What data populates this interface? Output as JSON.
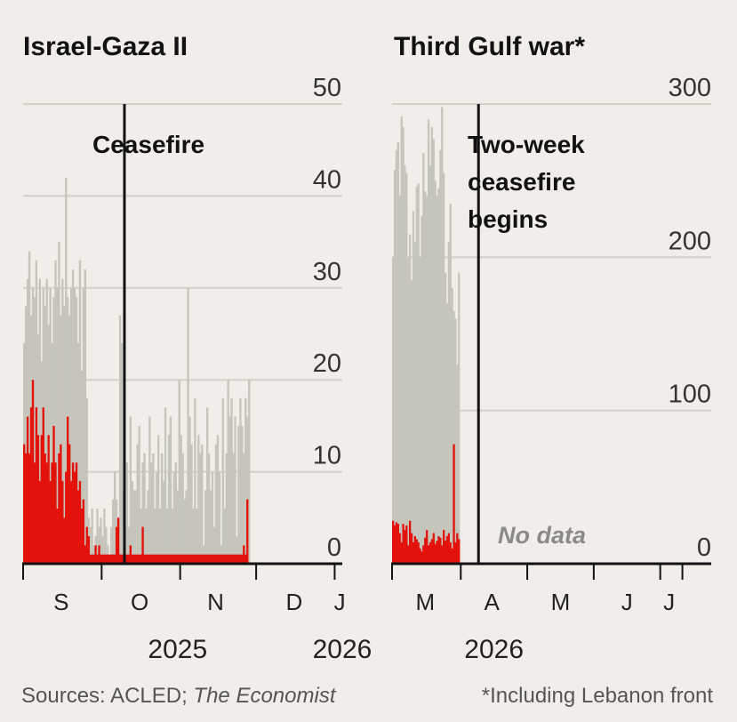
{
  "colors": {
    "background": "#f1eee9",
    "total_bar": "#c6c5bc",
    "highlight_bar": "#e3120b",
    "gridline": "#d3d0ca",
    "axis": "#121212"
  },
  "chart_data": [
    {
      "type": "bar",
      "title": "Israel-Gaza II",
      "ylim": [
        0,
        50
      ],
      "yticks": [
        0,
        10,
        20,
        30,
        40,
        50
      ],
      "ytick_labels": [
        "0",
        "10",
        "20",
        "30",
        "40",
        "50"
      ],
      "x_start": "2025-08-31",
      "x_end": "2026-01-04",
      "month_labels": [
        {
          "label": "S",
          "date": "2025-09-15"
        },
        {
          "label": "O",
          "date": "2025-10-16"
        },
        {
          "label": "N",
          "date": "2025-11-15"
        },
        {
          "label": "D",
          "date": "2025-12-16"
        },
        {
          "label": "J",
          "date": "2026-01-03"
        }
      ],
      "month_boundaries": [
        "2025-08-31",
        "2025-10-01",
        "2025-11-01",
        "2025-12-01",
        "2026-01-01"
      ],
      "year_labels": [
        {
          "label": "2025",
          "date": "2025-10-31"
        },
        {
          "label": "2026",
          "date": "2026-01-04"
        }
      ],
      "annotation": {
        "label": "Ceasefire",
        "date": "2025-10-10"
      },
      "series": [
        {
          "name": "total",
          "values": [
            24,
            28,
            31,
            34,
            27,
            30,
            29,
            33,
            25,
            31,
            22,
            30,
            28,
            31,
            26,
            30,
            24,
            29,
            33,
            30,
            35,
            27,
            31,
            28,
            42,
            29,
            27,
            30,
            32,
            30,
            29,
            24,
            33,
            21,
            30,
            32,
            18,
            5,
            4,
            6,
            2,
            3,
            6,
            4,
            5,
            3,
            6,
            4,
            2,
            1,
            4,
            7,
            10,
            7,
            5,
            27,
            24,
            8,
            4,
            11,
            4,
            16,
            9,
            8,
            8,
            13,
            15,
            6,
            11,
            12,
            6,
            8,
            16,
            11,
            12,
            6,
            10,
            14,
            6,
            12,
            9,
            17,
            6,
            14,
            16,
            6,
            10,
            11,
            8,
            20,
            14,
            12,
            7,
            8,
            30,
            16,
            13,
            6,
            18,
            6,
            14,
            12,
            13,
            2,
            8,
            17,
            12,
            8,
            10,
            4,
            13,
            14,
            10,
            2,
            18,
            6,
            12,
            20,
            16,
            18,
            12,
            16,
            3,
            15,
            18,
            15,
            12,
            18,
            16,
            20
          ]
        },
        {
          "name": "highlight",
          "values": [
            13,
            12,
            16,
            12,
            17,
            20,
            11,
            17,
            14,
            9,
            14,
            17,
            12,
            11,
            14,
            9,
            11,
            15,
            11,
            6,
            12,
            13,
            9,
            5,
            10,
            16,
            13,
            9,
            11,
            10,
            11,
            8,
            9,
            6,
            7,
            2,
            4,
            3,
            1,
            1,
            1,
            2,
            1,
            2,
            1,
            1,
            1,
            1,
            1,
            1,
            1,
            1,
            1,
            4,
            5,
            1,
            1,
            1,
            1,
            1,
            1,
            2,
            1,
            1,
            1,
            1,
            1,
            1,
            4,
            1,
            1,
            1,
            1,
            1,
            1,
            1,
            1,
            1,
            1,
            1,
            1,
            1,
            1,
            1,
            1,
            1,
            1,
            1,
            1,
            1,
            1,
            1,
            1,
            1,
            1,
            1,
            1,
            1,
            1,
            1,
            1,
            1,
            1,
            1,
            1,
            1,
            1,
            1,
            1,
            1,
            1,
            1,
            1,
            1,
            1,
            1,
            1,
            1,
            1,
            1,
            1,
            1,
            1,
            1,
            1,
            1,
            2,
            1,
            7
          ]
        }
      ]
    },
    {
      "type": "bar",
      "title": "Third Gulf war*",
      "ylim": [
        0,
        300
      ],
      "yticks": [
        0,
        100,
        200,
        300
      ],
      "ytick_labels": [
        "0",
        "100",
        "200",
        "300"
      ],
      "x_start": "2026-02-28",
      "x_end": "2026-07-22",
      "month_labels": [
        {
          "label": "M",
          "date": "2026-03-15"
        },
        {
          "label": "A",
          "date": "2026-04-14"
        },
        {
          "label": "M",
          "date": "2026-05-15"
        },
        {
          "label": "J",
          "date": "2026-06-14"
        },
        {
          "label": "J",
          "date": "2026-07-03"
        }
      ],
      "month_boundaries": [
        "2026-02-28",
        "2026-03-31",
        "2026-04-30",
        "2026-05-30",
        "2026-06-29",
        "2026-07-09"
      ],
      "year_labels": [
        {
          "label": "2026",
          "date": "2026-04-15"
        }
      ],
      "annotation": {
        "label": "Two-week ceasefire begins",
        "lines": [
          "Two-week",
          "ceasefire",
          "begins"
        ],
        "date": "2026-04-08"
      },
      "no_data_label": "No data",
      "series": [
        {
          "name": "total",
          "values": [
            200,
            257,
            270,
            275,
            240,
            292,
            285,
            260,
            255,
            200,
            215,
            185,
            230,
            210,
            246,
            248,
            200,
            227,
            268,
            243,
            240,
            290,
            260,
            285,
            277,
            250,
            240,
            245,
            270,
            298,
            255,
            190,
            170,
            210,
            235,
            180,
            165,
            160,
            130,
            190
          ]
        },
        {
          "name": "highlight",
          "values": [
            28,
            25,
            27,
            26,
            20,
            14,
            26,
            22,
            25,
            12,
            28,
            20,
            14,
            18,
            16,
            14,
            10,
            8,
            12,
            17,
            22,
            12,
            14,
            16,
            20,
            13,
            15,
            18,
            17,
            12,
            22,
            15,
            18,
            20,
            14,
            10,
            78,
            14,
            20,
            16
          ]
        }
      ]
    }
  ],
  "footer": {
    "sources_prefix": "Sources: ACLED; ",
    "sources_italic": "The Economist",
    "note": "*Including Lebanon front"
  }
}
